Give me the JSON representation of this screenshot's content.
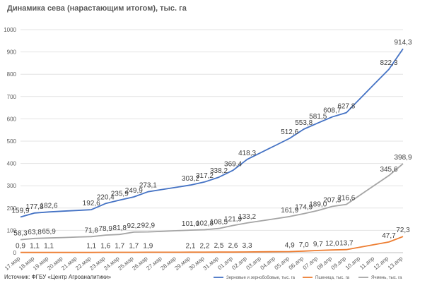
{
  "chart_data": {
    "type": "line",
    "title": "Динамика сева (нарастающим  итогом),  тыс. га",
    "source": "Источник: ФГБУ «Центр Агроаналитики»",
    "ylim": [
      0,
      1000
    ],
    "yticks": [
      "0",
      "100",
      "200",
      "300",
      "400",
      "500",
      "600",
      "700",
      "800",
      "900",
      "1000"
    ],
    "grid": true,
    "legend_position": "bottom-right",
    "categories": [
      "17.мар",
      "18.мар",
      "19.мар",
      "20.мар",
      "21.мар",
      "22.мар",
      "23.мар",
      "24.мар",
      "25.мар",
      "26.мар",
      "27.мар",
      "28.мар",
      "29.мар",
      "30.мар",
      "31.мар",
      "01.апр",
      "02.апр",
      "03.апр",
      "04.апр",
      "05.апр",
      "06.апр",
      "07.апр",
      "08.апр",
      "09.апр",
      "10.апр",
      "11.апр",
      "12.апр",
      "13.апр"
    ],
    "series": [
      {
        "name": "Зерновые и зернобобовые, тыс. га",
        "color": "#4472C4",
        "values": [
          159.9,
          177.8,
          182.6,
          null,
          null,
          192.6,
          220.4,
          235.9,
          249.9,
          273.1,
          null,
          null,
          303.2,
          317.2,
          338.2,
          369.4,
          418.3,
          null,
          null,
          512.6,
          553.8,
          581.5,
          608.7,
          627.8,
          null,
          null,
          822.3,
          914.3
        ],
        "labels": [
          "159,9",
          "177,8",
          "182,6",
          null,
          null,
          "192,6",
          "220,4",
          "235,9",
          "249,9",
          "273,1",
          null,
          null,
          "303,2",
          "317,2",
          "338,2",
          "369,4",
          "418,3",
          null,
          null,
          "512,6",
          "553,8",
          "581,5",
          "608,7",
          "627,8",
          null,
          null,
          "822,3",
          "914,3"
        ]
      },
      {
        "name": "Пшеница, тыс. га",
        "color": "#ED7D31",
        "values": [
          0.9,
          1.1,
          1.1,
          null,
          null,
          1.1,
          1.6,
          1.7,
          1.7,
          1.9,
          null,
          null,
          2.1,
          2.2,
          2.5,
          2.6,
          3.3,
          null,
          null,
          4.9,
          7.0,
          9.7,
          12.0,
          13.7,
          null,
          null,
          47.7,
          72.3
        ],
        "labels": [
          "0,9",
          "1,1",
          "1,1",
          null,
          null,
          "1,1",
          "1,6",
          "1,7",
          "1,7",
          "1,9",
          null,
          null,
          "2,1",
          "2,2",
          "2,5",
          "2,6",
          "3,3",
          null,
          null,
          "4,9",
          "7,0",
          "9,7",
          "12,0",
          "13,7",
          null,
          null,
          "47,7",
          "72,3"
        ]
      },
      {
        "name": "Ячмень, тыс. га",
        "color": "#A5A5A5",
        "values": [
          58.3,
          63.8,
          65.9,
          null,
          null,
          71.8,
          78.9,
          81.8,
          92.2,
          92.9,
          null,
          null,
          101.0,
          102.8,
          108.5,
          121.9,
          133.2,
          null,
          null,
          161.9,
          174.9,
          189.0,
          207.3,
          216.6,
          null,
          null,
          345.6,
          398.9
        ],
        "labels": [
          "58,3",
          "63,8",
          "65,9",
          null,
          null,
          "71,8",
          "78,9",
          "81,8",
          "92,2",
          "92,9",
          null,
          null,
          "101,0",
          "102,8",
          "108,5",
          "121,9",
          "133,2",
          null,
          null,
          "161,9",
          "174,9",
          "189,0",
          "207,3",
          "216,6",
          null,
          null,
          "345,6",
          "398,9"
        ]
      }
    ]
  }
}
